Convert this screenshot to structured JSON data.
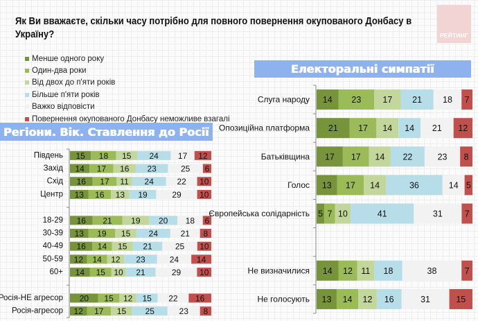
{
  "title_lines": [
    "Як Ви вважаєте, скільки часу потрібно для повного повернення окупованого Донбасу в",
    "Україну?"
  ],
  "logo": {
    "text": "РЕЙТИНГ",
    "color": "#f3d4d4"
  },
  "legend": [
    {
      "label": "Менше одного року",
      "color": "#77933C"
    },
    {
      "label": "Один-два роки",
      "color": "#9BBB59"
    },
    {
      "label": "Від двох до п'яти років",
      "color": "#C3D69B"
    },
    {
      "label": "Більше п'яти років",
      "color": "#B7DEE8"
    },
    {
      "label": "Важко відповісти",
      "color": "#F2F2F2"
    },
    {
      "label": "Повернення окупованого Донбасу неможливе взагалі",
      "color": "#C0504D"
    }
  ],
  "headers": {
    "left": "Регіони. Вік. Ставлення до Росії",
    "right": "Електоральні симпатії",
    "color": "#8DB2EE"
  },
  "chart_data": [
    {
      "type": "bar",
      "orientation": "horizontal",
      "stacked": true,
      "normalized": true,
      "title": "Регіони. Вік. Ставлення до Росії",
      "xlabel": "",
      "ylabel": "",
      "xlim": [
        0,
        100
      ],
      "grid": false,
      "categories": [
        "Південь",
        "Захід",
        "Схід",
        "Центр",
        "18-29",
        "30-39",
        "40-49",
        "50-59",
        "60+",
        "Росія-НЕ агресор",
        "Росія-агресор"
      ],
      "groups": [
        [
          "Південь",
          "Захід",
          "Схід",
          "Центр"
        ],
        [
          "18-29",
          "30-39",
          "40-49",
          "50-59",
          "60+"
        ],
        [
          "Росія-НЕ агресор",
          "Росія-агресор"
        ]
      ],
      "series": [
        {
          "name": "Менше одного року",
          "color": "#77933C",
          "values": [
            15,
            14,
            16,
            13,
            16,
            13,
            16,
            12,
            14,
            20,
            12
          ]
        },
        {
          "name": "Один-два роки",
          "color": "#9BBB59",
          "values": [
            18,
            17,
            17,
            16,
            21,
            19,
            14,
            14,
            15,
            15,
            17
          ]
        },
        {
          "name": "Від двох до п'яти років",
          "color": "#C3D69B",
          "values": [
            15,
            16,
            11,
            13,
            19,
            15,
            15,
            12,
            10,
            12,
            15
          ]
        },
        {
          "name": "Більше п'яти років",
          "color": "#B7DEE8",
          "values": [
            24,
            23,
            24,
            19,
            20,
            24,
            21,
            23,
            21,
            15,
            25
          ]
        },
        {
          "name": "Важко відповісти",
          "color": "#F2F2F2",
          "values": [
            17,
            25,
            22,
            29,
            18,
            21,
            25,
            24,
            29,
            22,
            23
          ]
        },
        {
          "name": "Повернення окупованого Донбасу неможливе взагалі",
          "color": "#C0504D",
          "values": [
            12,
            6,
            10,
            10,
            6,
            8,
            10,
            14,
            10,
            16,
            8
          ]
        }
      ]
    },
    {
      "type": "bar",
      "orientation": "horizontal",
      "stacked": true,
      "normalized": true,
      "title": "Електоральні симпатії",
      "xlabel": "",
      "ylabel": "",
      "xlim": [
        0,
        100
      ],
      "grid": false,
      "categories": [
        "Слуга народу",
        "Опозиційна платформа",
        "Батьківщина",
        "Голос",
        "Європейська солідарність",
        "Не визначилися",
        "Не голосують"
      ],
      "groups": [
        [
          "Слуга народу",
          "Опозиційна платформа",
          "Батьківщина",
          "Голос",
          "Європейська солідарність"
        ],
        [
          "Не визначилися",
          "Не голосують"
        ]
      ],
      "series": [
        {
          "name": "Менше одного року",
          "color": "#77933C",
          "values": [
            14,
            21,
            17,
            13,
            5,
            14,
            13
          ]
        },
        {
          "name": "Один-два роки",
          "color": "#9BBB59",
          "values": [
            23,
            17,
            17,
            17,
            7,
            12,
            14
          ]
        },
        {
          "name": "Від двох до п'яти років",
          "color": "#C3D69B",
          "values": [
            17,
            14,
            14,
            14,
            10,
            11,
            12
          ]
        },
        {
          "name": "Більше п'яти років",
          "color": "#B7DEE8",
          "values": [
            21,
            14,
            22,
            36,
            41,
            18,
            16
          ]
        },
        {
          "name": "Важко відповісти",
          "color": "#F2F2F2",
          "values": [
            18,
            21,
            23,
            14,
            31,
            38,
            31
          ]
        },
        {
          "name": "Повернення окупованого Донбасу неможливе взагалі",
          "color": "#C0504D",
          "values": [
            7,
            12,
            8,
            5,
            7,
            7,
            15
          ]
        }
      ]
    }
  ]
}
